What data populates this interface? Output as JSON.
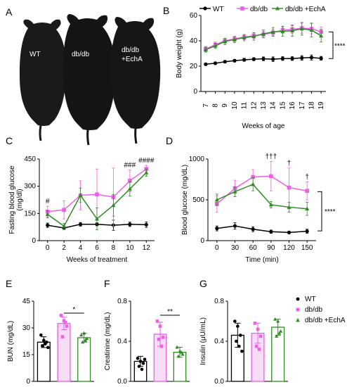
{
  "panel_letters": [
    "A",
    "B",
    "C",
    "D",
    "E",
    "F",
    "G"
  ],
  "photo_labels": [
    "WT",
    "db/db",
    "db/db",
    "+EchA"
  ],
  "colors": {
    "wt": "#000000",
    "dbdb": "#ee5ee8",
    "echa": "#2e8b22",
    "sig": "#000000"
  },
  "chart_data": [
    {
      "panel": "B",
      "type": "line",
      "xlabel": "Weeks of age",
      "ylabel": "Body weight (g)",
      "x": [
        7,
        8,
        9,
        10,
        11,
        12,
        13,
        14,
        15,
        16,
        17,
        18,
        19
      ],
      "ylim": [
        0,
        60
      ],
      "yticks": [
        0,
        20,
        40,
        60
      ],
      "legend": [
        "WT",
        "db/db",
        "db/db +EchA"
      ],
      "significance": "****",
      "series": [
        {
          "name": "WT",
          "values": [
            21.5,
            22.3,
            23.5,
            24.3,
            25,
            25.5,
            25.8,
            25.5,
            26,
            26,
            26.5,
            26.8,
            26.2
          ],
          "err": [
            1,
            1,
            1,
            1,
            1.2,
            1.2,
            1.5,
            1.8,
            1.5,
            1.5,
            1.8,
            2,
            1.5
          ]
        },
        {
          "name": "db/db",
          "values": [
            33.5,
            37,
            40,
            41.5,
            43,
            44,
            45,
            46.5,
            48.5,
            49,
            50,
            49.5,
            47
          ],
          "err": [
            2,
            2,
            2,
            2,
            2,
            2.2,
            2.5,
            2.5,
            2.5,
            3,
            4,
            4,
            4
          ]
        },
        {
          "name": "db/db +EchA",
          "values": [
            33,
            36,
            39.5,
            41,
            42.5,
            43.5,
            45.5,
            47,
            47.5,
            48,
            49.5,
            48.5,
            44
          ],
          "err": [
            2,
            2,
            2.5,
            2.5,
            2.5,
            3,
            3,
            3.5,
            4,
            4.5,
            5,
            5.5,
            5
          ]
        }
      ]
    },
    {
      "panel": "C",
      "type": "line",
      "xlabel": "Weeks of treatment",
      "ylabel": "Fasting blood glucose\n(mg/dl)",
      "x": [
        0,
        2,
        4,
        6,
        8,
        10,
        12
      ],
      "ylim": [
        0,
        450
      ],
      "yticks": [
        0,
        150,
        300,
        450
      ],
      "annotations": [
        {
          "x": 0,
          "text": "#"
        },
        {
          "x": 10,
          "text": "###"
        },
        {
          "x": 12,
          "text": "####"
        }
      ],
      "series": [
        {
          "name": "WT",
          "values": [
            85,
            70,
            90,
            90,
            85,
            90,
            88
          ],
          "err": [
            12,
            8,
            10,
            8,
            28,
            12,
            15
          ]
        },
        {
          "name": "db/db",
          "values": [
            160,
            170,
            250,
            255,
            240,
            330,
            395
          ],
          "err": [
            30,
            50,
            80,
            140,
            160,
            60,
            20
          ]
        },
        {
          "name": "db/db +EchA",
          "values": [
            145,
            80,
            250,
            120,
            195,
            285,
            375
          ],
          "err": [
            20,
            15,
            40,
            60,
            60,
            40,
            20
          ]
        }
      ]
    },
    {
      "panel": "D",
      "type": "line",
      "xlabel": "Time (min)",
      "ylabel": "Blood glucose (mg/dL)",
      "x": [
        0,
        30,
        60,
        90,
        120,
        150
      ],
      "ylim": [
        0,
        1000
      ],
      "yticks": [
        0,
        500,
        1000
      ],
      "significance": "****",
      "annotations": [
        {
          "x": 90,
          "text": "†††"
        },
        {
          "x": 120,
          "text": "†"
        },
        {
          "x": 150,
          "text": "†"
        }
      ],
      "series": [
        {
          "name": "WT",
          "values": [
            150,
            180,
            140,
            110,
            100,
            115
          ],
          "err": [
            30,
            40,
            30,
            20,
            15,
            25
          ]
        },
        {
          "name": "db/db",
          "values": [
            450,
            640,
            780,
            790,
            650,
            610
          ],
          "err": [
            100,
            100,
            90,
            180,
            240,
            110
          ]
        },
        {
          "name": "db/db +EchA",
          "values": [
            500,
            600,
            690,
            440,
            410,
            390
          ],
          "err": [
            70,
            60,
            80,
            40,
            60,
            80
          ]
        }
      ]
    },
    {
      "panel": "E",
      "type": "bar",
      "ylabel": "BUN (mg/dL)",
      "categories": [
        "WT",
        "db/db",
        "db/db +EchA"
      ],
      "ylim": [
        0,
        45
      ],
      "yticks": [
        0,
        15,
        30,
        45
      ],
      "values": [
        22,
        32.5,
        24.5
      ],
      "err": [
        3,
        3.5,
        2.5
      ],
      "points": [
        [
          26,
          23,
          22,
          20,
          21,
          19
        ],
        [
          37,
          34,
          31,
          25,
          33
        ],
        [
          26,
          27,
          24,
          22,
          23
        ]
      ],
      "significance": "*"
    },
    {
      "panel": "F",
      "type": "bar",
      "ylabel": "Creatinine (mg/dL)",
      "categories": [
        "WT",
        "db/db",
        "db/db +EchA"
      ],
      "ylim": [
        0,
        0.8
      ],
      "yticks": [
        0.0,
        0.4,
        0.8
      ],
      "values": [
        0.2,
        0.47,
        0.29
      ],
      "err": [
        0.05,
        0.12,
        0.05
      ],
      "points": [
        [
          0.23,
          0.2,
          0.18,
          0.15,
          0.12,
          0.22
        ],
        [
          0.6,
          0.55,
          0.44,
          0.42,
          0.35
        ],
        [
          0.34,
          0.3,
          0.27,
          0.25,
          0.29
        ]
      ],
      "significance": "**"
    },
    {
      "panel": "G",
      "type": "bar",
      "ylabel": "Insulin (μU/mL)",
      "categories": [
        "WT",
        "db/db",
        "db/db +EchA"
      ],
      "ylim": [
        0,
        0.8
      ],
      "yticks": [
        0.0,
        0.4,
        0.8
      ],
      "values": [
        0.46,
        0.48,
        0.54
      ],
      "err": [
        0.12,
        0.1,
        0.08
      ],
      "points": [
        [
          0.6,
          0.55,
          0.46,
          0.4,
          0.35,
          0.3
        ],
        [
          0.58,
          0.52,
          0.45,
          0.35,
          0.32
        ],
        [
          0.62,
          0.6,
          0.5,
          0.45,
          0.48
        ]
      ],
      "legend": [
        "WT",
        "db/db",
        "db/db +EchA"
      ]
    }
  ]
}
